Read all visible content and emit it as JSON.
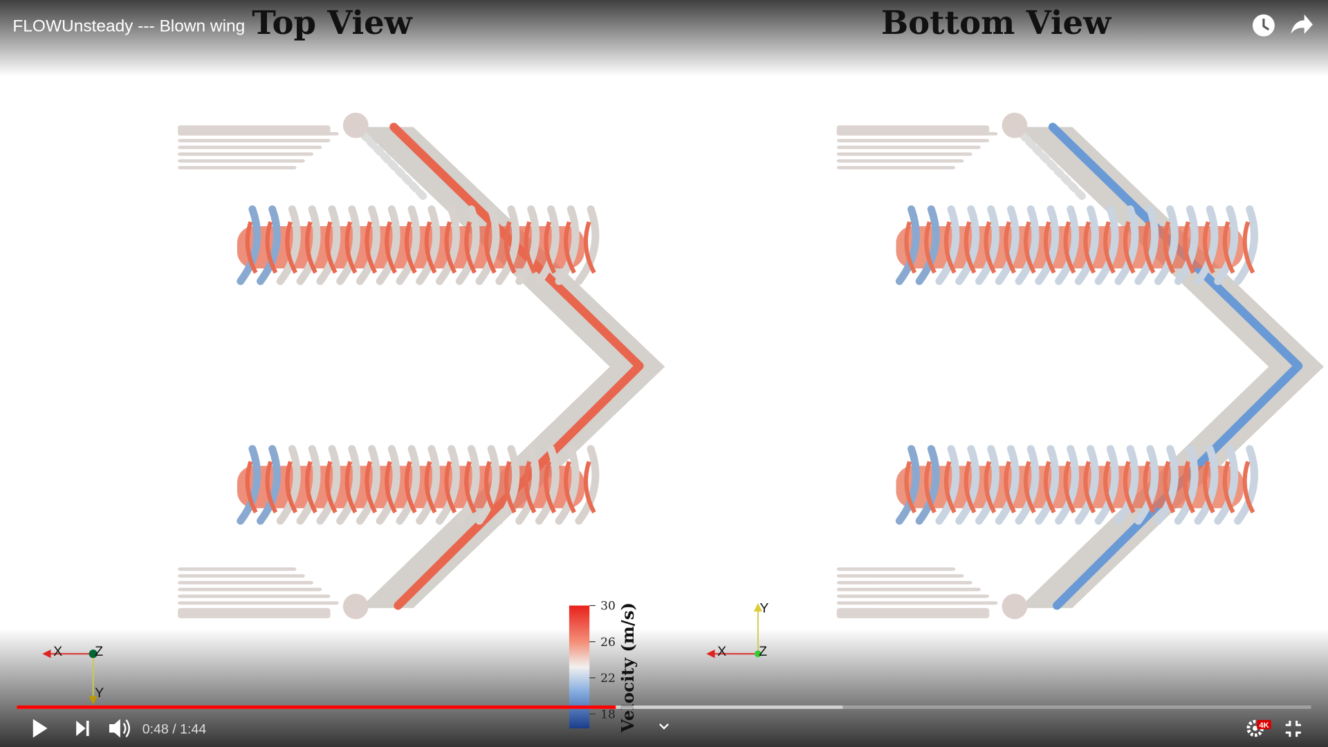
{
  "player": {
    "title": "FLOWUnsteady --- Blown wing",
    "time": "0:48 / 1:44",
    "quality_badge": "4K"
  },
  "video": {
    "top_view": "Top View",
    "bottom_view": "Bottom View",
    "colorbar": {
      "label": "Velocity (m/s)",
      "ticks": [
        30,
        26,
        22,
        18
      ],
      "lim": [
        16.4,
        30
      ]
    },
    "axes_top": {
      "x": "X",
      "y": "Y",
      "z": "Z"
    },
    "axes_bottom": {
      "x": "X",
      "y": "Y",
      "z": "Z"
    }
  }
}
